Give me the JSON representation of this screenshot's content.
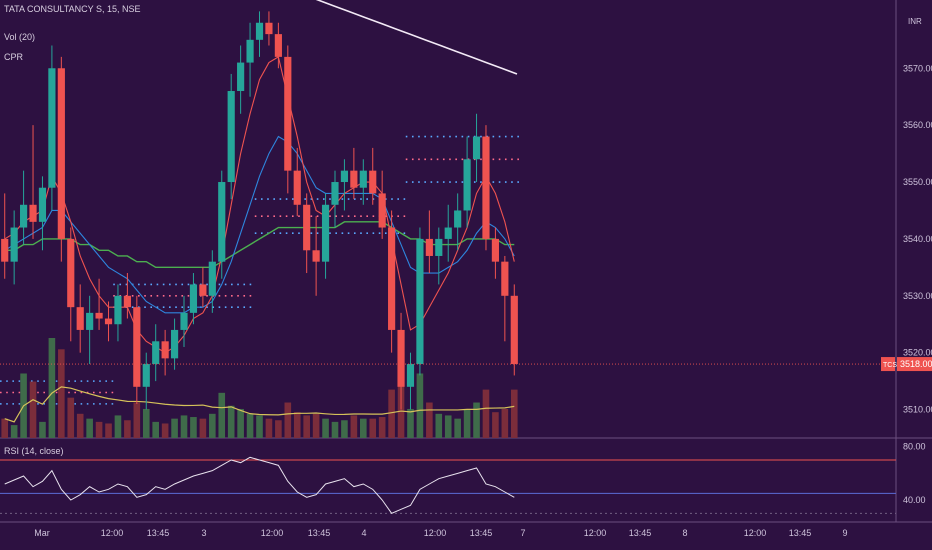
{
  "legend": {
    "symbol_line": "TATA CONSULTANCY S, 15, NSE",
    "volume": "Vol (20)",
    "cpr": "CPR",
    "rsi": "RSI (14, close)"
  },
  "currency": "INR",
  "price_tag": {
    "symbol": "TCS",
    "value": "3518.00"
  },
  "colors": {
    "background": "#2d1141",
    "up": "#26a69a",
    "down": "#ef5350",
    "ma_fast": "#ef5350",
    "ma_mid": "#2e86de",
    "ma_slow": "#4caf50",
    "long_ma": "#f3eaf6",
    "rsi_line": "#e8e2ee",
    "rsi_upper": "#ef5350",
    "rsi_lower": "#5b6bd6"
  },
  "chart_data": [
    {
      "type": "candlestick",
      "y_ticks": [
        "3510.00",
        "3520.00",
        "3530.00",
        "3540.00",
        "3550.00",
        "3560.00",
        "3570.00"
      ],
      "ylim": [
        3505,
        3582
      ],
      "x_ticks": [
        "Mar",
        "12:00",
        "13:45",
        "3",
        "12:00",
        "13:45",
        "4",
        "12:00",
        "13:45",
        "7",
        "12:00",
        "13:45",
        "8",
        "12:00",
        "13:45",
        "9"
      ],
      "candles": [
        [
          3540,
          3548,
          3533,
          3536
        ],
        [
          3536,
          3545,
          3532,
          3542
        ],
        [
          3542,
          3552,
          3539,
          3546
        ],
        [
          3546,
          3560,
          3540,
          3543
        ],
        [
          3543,
          3551,
          3538,
          3549
        ],
        [
          3549,
          3574,
          3545,
          3570
        ],
        [
          3570,
          3572,
          3536,
          3540
        ],
        [
          3540,
          3542,
          3522,
          3528
        ],
        [
          3528,
          3532,
          3520,
          3524
        ],
        [
          3524,
          3530,
          3518,
          3527
        ],
        [
          3527,
          3533,
          3524,
          3526
        ],
        [
          3526,
          3529,
          3522,
          3525
        ],
        [
          3525,
          3532,
          3522,
          3530
        ],
        [
          3530,
          3534,
          3526,
          3528
        ],
        [
          3528,
          3530,
          3511,
          3514
        ],
        [
          3514,
          3520,
          3510,
          3518
        ],
        [
          3518,
          3525,
          3515,
          3522
        ],
        [
          3522,
          3524,
          3516,
          3519
        ],
        [
          3519,
          3526,
          3517,
          3524
        ],
        [
          3524,
          3530,
          3521,
          3527
        ],
        [
          3527,
          3534,
          3525,
          3532
        ],
        [
          3532,
          3535,
          3528,
          3530
        ],
        [
          3530,
          3538,
          3527,
          3536
        ],
        [
          3536,
          3552,
          3533,
          3550
        ],
        [
          3550,
          3569,
          3547,
          3566
        ],
        [
          3566,
          3574,
          3562,
          3571
        ],
        [
          3571,
          3578,
          3565,
          3575
        ],
        [
          3575,
          3580,
          3572,
          3578
        ],
        [
          3578,
          3580,
          3574,
          3576
        ],
        [
          3576,
          3578,
          3570,
          3572
        ],
        [
          3572,
          3574,
          3548,
          3552
        ],
        [
          3552,
          3556,
          3544,
          3546
        ],
        [
          3546,
          3548,
          3534,
          3538
        ],
        [
          3538,
          3544,
          3530,
          3536
        ],
        [
          3536,
          3548,
          3533,
          3546
        ],
        [
          3546,
          3552,
          3542,
          3550
        ],
        [
          3550,
          3554,
          3545,
          3552
        ],
        [
          3552,
          3556,
          3547,
          3549
        ],
        [
          3549,
          3554,
          3546,
          3552
        ],
        [
          3552,
          3556,
          3546,
          3548
        ],
        [
          3548,
          3552,
          3540,
          3542
        ],
        [
          3542,
          3545,
          3520,
          3524
        ],
        [
          3524,
          3527,
          3510,
          3514
        ],
        [
          3514,
          3520,
          3510,
          3518
        ],
        [
          3518,
          3542,
          3516,
          3540
        ],
        [
          3540,
          3545,
          3534,
          3537
        ],
        [
          3537,
          3542,
          3532,
          3540
        ],
        [
          3540,
          3546,
          3536,
          3542
        ],
        [
          3542,
          3548,
          3538,
          3545
        ],
        [
          3545,
          3558,
          3542,
          3554
        ],
        [
          3554,
          3562,
          3550,
          3558
        ],
        [
          3558,
          3560,
          3538,
          3540
        ],
        [
          3540,
          3542,
          3533,
          3536
        ],
        [
          3536,
          3537,
          3522,
          3530
        ],
        [
          3530,
          3532,
          3516,
          3518
        ]
      ],
      "ma_fast": [
        3540,
        3541,
        3543,
        3544,
        3545,
        3551,
        3548,
        3543,
        3537,
        3533,
        3530,
        3528,
        3528,
        3528,
        3524,
        3522,
        3521,
        3520,
        3521,
        3523,
        3526,
        3527,
        3530,
        3537,
        3546,
        3555,
        3562,
        3568,
        3571,
        3572,
        3565,
        3558,
        3550,
        3545,
        3544,
        3546,
        3548,
        3549,
        3550,
        3550,
        3548,
        3540,
        3532,
        3524,
        3525,
        3528,
        3531,
        3534,
        3538,
        3542,
        3548,
        3551,
        3548,
        3543,
        3536
      ],
      "ma_mid": [
        3538,
        3539,
        3540,
        3541,
        3542,
        3545,
        3545,
        3543,
        3541,
        3539,
        3537,
        3535,
        3534,
        3533,
        3531,
        3529,
        3528,
        3527,
        3527,
        3527,
        3528,
        3528,
        3529,
        3532,
        3536,
        3541,
        3546,
        3551,
        3555,
        3558,
        3557,
        3555,
        3552,
        3549,
        3548,
        3548,
        3548,
        3548,
        3548,
        3548,
        3547,
        3543,
        3539,
        3535,
        3534,
        3534,
        3534,
        3535,
        3536,
        3538,
        3541,
        3543,
        3542,
        3540,
        3537
      ],
      "ma_slow": [
        3538,
        3538,
        3539,
        3539,
        3540,
        3540,
        3540,
        3540,
        3539,
        3539,
        3538,
        3538,
        3537,
        3537,
        3536,
        3536,
        3535,
        3535,
        3535,
        3535,
        3535,
        3535,
        3535,
        3536,
        3537,
        3538,
        3539,
        3540,
        3541,
        3542,
        3542,
        3542,
        3542,
        3542,
        3542,
        3542,
        3543,
        3543,
        3543,
        3543,
        3543,
        3542,
        3541,
        3540,
        3540,
        3539,
        3539,
        3539,
        3539,
        3540,
        3540,
        3540,
        3540,
        3539,
        3539
      ],
      "long_ma": [
        3592,
        3591,
        3590,
        3589,
        3588,
        3587,
        3586,
        3585,
        3584,
        3583,
        3582,
        3581,
        3580,
        3579,
        3578,
        3577,
        3576,
        3575,
        3574,
        3573,
        3572,
        3571,
        3570,
        3569
      ],
      "cpr_levels": [
        {
          "from": 0,
          "to": 12,
          "values": [
            3515,
            3513,
            3511
          ]
        },
        {
          "from": 12,
          "to": 27,
          "values": [
            3532,
            3530,
            3528
          ]
        },
        {
          "from": 27,
          "to": 43,
          "values": [
            3547,
            3544,
            3541
          ]
        },
        {
          "from": 43,
          "to": 55,
          "values": [
            3558,
            3554,
            3550
          ]
        }
      ],
      "volume": [
        12,
        8,
        40,
        35,
        10,
        62,
        55,
        25,
        15,
        12,
        10,
        9,
        14,
        11,
        22,
        18,
        10,
        9,
        12,
        14,
        13,
        12,
        15,
        28,
        20,
        18,
        15,
        14,
        12,
        11,
        22,
        16,
        14,
        15,
        12,
        10,
        11,
        14,
        12,
        12,
        13,
        30,
        35,
        18,
        40,
        22,
        15,
        14,
        12,
        18,
        22,
        30,
        16,
        18,
        30
      ]
    },
    {
      "type": "line",
      "name": "RSI",
      "y_ticks": [
        "80.00",
        "40.00"
      ],
      "ylim": [
        25,
        85
      ],
      "upper_band": 70,
      "lower_band": 45,
      "values": [
        52,
        55,
        58,
        50,
        54,
        62,
        48,
        40,
        44,
        50,
        46,
        48,
        52,
        50,
        42,
        44,
        50,
        48,
        52,
        55,
        58,
        60,
        62,
        66,
        70,
        68,
        72,
        70,
        68,
        66,
        54,
        46,
        42,
        44,
        52,
        54,
        56,
        50,
        52,
        48,
        40,
        30,
        33,
        36,
        48,
        52,
        56,
        58,
        60,
        62,
        64,
        52,
        50,
        46,
        42
      ]
    }
  ]
}
